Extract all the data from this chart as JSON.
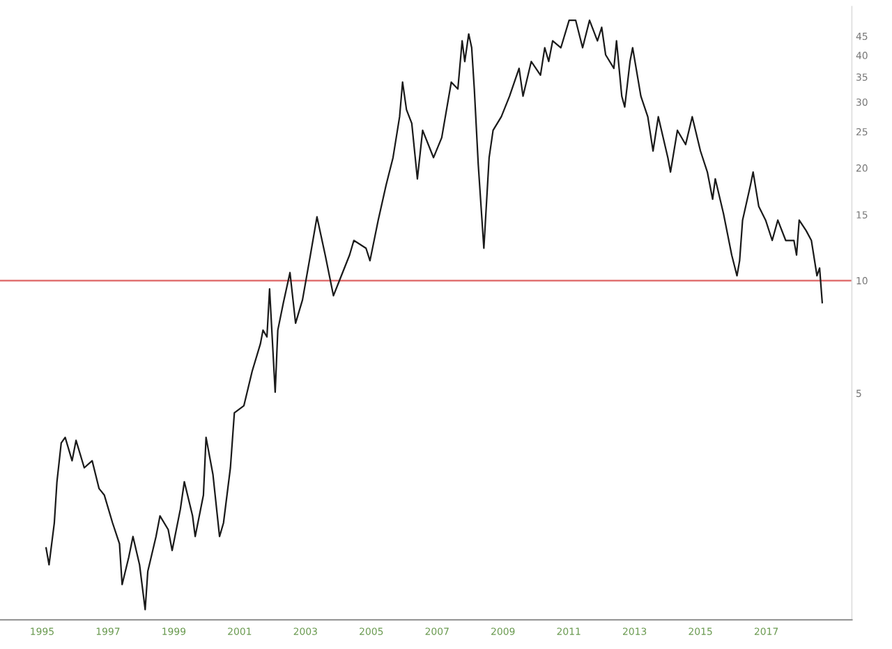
{
  "chart_data": {
    "type": "line",
    "log": "y",
    "x": [
      1995.12,
      1995.21,
      1995.37,
      1995.45,
      1995.58,
      1995.7,
      1995.91,
      1996.03,
      1996.28,
      1996.52,
      1996.73,
      1996.89,
      1997.14,
      1997.35,
      1997.43,
      1997.63,
      1997.76,
      1997.96,
      1998.13,
      1998.21,
      1998.46,
      1998.58,
      1998.83,
      1998.95,
      1999.2,
      1999.32,
      1999.57,
      1999.65,
      1999.9,
      1999.98,
      2000.19,
      2000.39,
      2000.51,
      2000.72,
      2000.84,
      2001.13,
      2001.38,
      2001.63,
      2001.71,
      2001.83,
      2001.91,
      2002.08,
      2002.16,
      2002.33,
      2002.53,
      2002.7,
      2002.91,
      2003.15,
      2003.35,
      2003.6,
      2003.85,
      2004.09,
      2004.34,
      2004.47,
      2004.84,
      2004.96,
      2005.21,
      2005.45,
      2005.66,
      2005.86,
      2005.95,
      2006.07,
      2006.23,
      2006.4,
      2006.56,
      2006.81,
      2006.89,
      2007.14,
      2007.43,
      2007.63,
      2007.76,
      2007.84,
      2007.96,
      2008.05,
      2008.13,
      2008.25,
      2008.42,
      2008.58,
      2008.7,
      2008.95,
      2009.2,
      2009.49,
      2009.61,
      2009.86,
      2010.14,
      2010.27,
      2010.39,
      2010.51,
      2010.76,
      2011.01,
      2011.21,
      2011.42,
      2011.63,
      2011.87,
      2012.0,
      2012.12,
      2012.37,
      2012.45,
      2012.61,
      2012.7,
      2012.86,
      2012.94,
      2013.19,
      2013.4,
      2013.56,
      2013.72,
      2014.01,
      2014.09,
      2014.3,
      2014.55,
      2014.75,
      2015.0,
      2015.21,
      2015.37,
      2015.45,
      2015.7,
      2015.95,
      2016.11,
      2016.19,
      2016.28,
      2016.52,
      2016.6,
      2016.77,
      2016.98,
      2017.18,
      2017.35,
      2017.59,
      2017.84,
      2017.92,
      2018.0,
      2018.21,
      2018.37,
      2018.54,
      2018.62,
      2018.7
    ],
    "series": [
      {
        "color": "#1a1a1a",
        "values": [
          1.93,
          1.74,
          2.25,
          2.9,
          3.68,
          3.81,
          3.3,
          3.74,
          3.16,
          3.3,
          2.78,
          2.67,
          2.25,
          1.98,
          1.54,
          1.82,
          2.07,
          1.74,
          1.32,
          1.67,
          2.07,
          2.35,
          2.16,
          1.9,
          2.45,
          2.9,
          2.35,
          2.07,
          2.67,
          3.81,
          3.03,
          2.07,
          2.25,
          3.16,
          4.43,
          4.63,
          5.72,
          6.77,
          7.37,
          7.07,
          9.5,
          5.03,
          7.37,
          8.73,
          10.5,
          7.69,
          8.88,
          11.7,
          14.8,
          11.7,
          9.11,
          10.3,
          11.7,
          12.8,
          12.2,
          11.3,
          14.5,
          18.0,
          21.3,
          27.4,
          33.9,
          28.6,
          26.3,
          18.7,
          25.2,
          22.2,
          21.3,
          24.1,
          33.9,
          32.5,
          43.7,
          38.5,
          45.6,
          41.9,
          32.5,
          20.4,
          12.2,
          21.3,
          25.2,
          27.4,
          31.1,
          36.9,
          31.1,
          38.5,
          35.4,
          41.9,
          38.5,
          43.7,
          41.9,
          49.6,
          49.6,
          41.9,
          49.6,
          43.7,
          47.5,
          40.1,
          36.9,
          43.7,
          31.1,
          29.1,
          38.5,
          41.9,
          31.1,
          27.4,
          22.2,
          27.4,
          21.3,
          19.5,
          25.2,
          23.1,
          27.4,
          22.2,
          19.5,
          16.5,
          18.7,
          15.1,
          11.7,
          10.3,
          11.3,
          14.5,
          18.0,
          19.5,
          15.8,
          14.5,
          12.8,
          14.5,
          12.8,
          12.8,
          11.7,
          14.5,
          13.6,
          12.8,
          10.3,
          10.8,
          8.73
        ]
      }
    ],
    "xlim": [
      1993.72,
      2019.6
    ],
    "xticks": [
      1995,
      1997,
      1999,
      2001,
      2003,
      2005,
      2007,
      2009,
      2011,
      2013,
      2015,
      2017
    ],
    "ylim": [
      1.24,
      54
    ],
    "yticks": [
      5,
      10,
      15,
      20,
      25,
      30,
      35,
      40,
      45
    ],
    "ref_lines": [
      {
        "axis": "y",
        "value": 10,
        "color": "#e07070"
      }
    ],
    "grid": false,
    "legend": false
  }
}
